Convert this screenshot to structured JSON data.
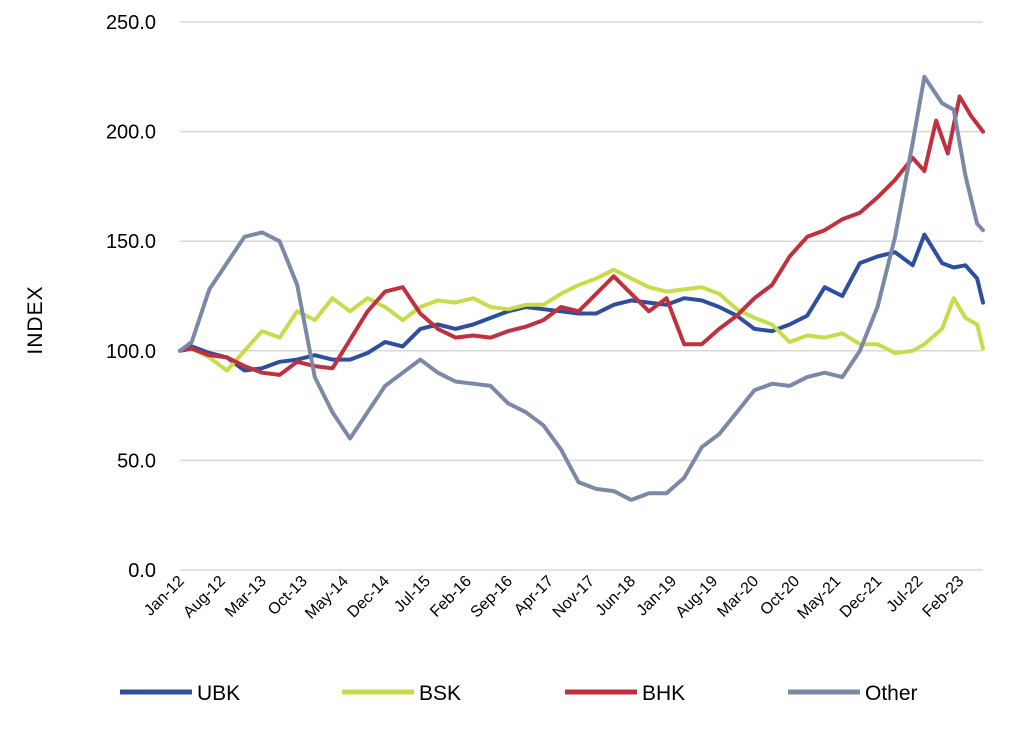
{
  "chart_data": {
    "type": "line",
    "title": "",
    "xlabel": "",
    "ylabel": "INDEX",
    "ylim": [
      0,
      250
    ],
    "yticks": [
      "0.0",
      "50.0",
      "100.0",
      "150.0",
      "200.0",
      "250.0"
    ],
    "x_range": [
      "2012-01",
      "2023-06"
    ],
    "xtick_labels": [
      {
        "label": "Jan-12",
        "date": "2012-01"
      },
      {
        "label": "Aug-12",
        "date": "2012-08"
      },
      {
        "label": "Mar-13",
        "date": "2013-03"
      },
      {
        "label": "Oct-13",
        "date": "2013-10"
      },
      {
        "label": "May-14",
        "date": "2014-05"
      },
      {
        "label": "Dec-14",
        "date": "2014-12"
      },
      {
        "label": "Jul-15",
        "date": "2015-07"
      },
      {
        "label": "Feb-16",
        "date": "2016-02"
      },
      {
        "label": "Sep-16",
        "date": "2016-09"
      },
      {
        "label": "Apr-17",
        "date": "2017-04"
      },
      {
        "label": "Nov-17",
        "date": "2017-11"
      },
      {
        "label": "Jun-18",
        "date": "2018-06"
      },
      {
        "label": "Jan-19",
        "date": "2019-01"
      },
      {
        "label": "Aug-19",
        "date": "2019-08"
      },
      {
        "label": "Mar-20",
        "date": "2020-03"
      },
      {
        "label": "Oct-20",
        "date": "2020-10"
      },
      {
        "label": "May-21",
        "date": "2021-05"
      },
      {
        "label": "Dec-21",
        "date": "2021-12"
      },
      {
        "label": "Jul-22",
        "date": "2022-07"
      },
      {
        "label": "Feb-23",
        "date": "2023-02"
      }
    ],
    "grid": true,
    "legend_position": "bottom",
    "series": [
      {
        "name": "UBK",
        "color": "#2e4f9e",
        "points": [
          [
            "2012-01",
            100
          ],
          [
            "2012-03",
            102
          ],
          [
            "2012-06",
            99
          ],
          [
            "2012-09",
            97
          ],
          [
            "2012-12",
            91
          ],
          [
            "2013-03",
            92
          ],
          [
            "2013-06",
            95
          ],
          [
            "2013-09",
            96
          ],
          [
            "2013-12",
            98
          ],
          [
            "2014-03",
            96
          ],
          [
            "2014-06",
            96
          ],
          [
            "2014-09",
            99
          ],
          [
            "2014-12",
            104
          ],
          [
            "2015-03",
            102
          ],
          [
            "2015-06",
            110
          ],
          [
            "2015-09",
            112
          ],
          [
            "2015-12",
            110
          ],
          [
            "2016-03",
            112
          ],
          [
            "2016-06",
            115
          ],
          [
            "2016-09",
            118
          ],
          [
            "2016-12",
            120
          ],
          [
            "2017-03",
            119
          ],
          [
            "2017-06",
            118
          ],
          [
            "2017-09",
            117
          ],
          [
            "2017-12",
            117
          ],
          [
            "2018-03",
            121
          ],
          [
            "2018-06",
            123
          ],
          [
            "2018-09",
            122
          ],
          [
            "2018-12",
            121
          ],
          [
            "2019-03",
            124
          ],
          [
            "2019-06",
            123
          ],
          [
            "2019-09",
            120
          ],
          [
            "2019-12",
            116
          ],
          [
            "2020-03",
            110
          ],
          [
            "2020-06",
            109
          ],
          [
            "2020-09",
            112
          ],
          [
            "2020-12",
            116
          ],
          [
            "2021-03",
            129
          ],
          [
            "2021-06",
            125
          ],
          [
            "2021-09",
            140
          ],
          [
            "2021-12",
            143
          ],
          [
            "2022-03",
            145
          ],
          [
            "2022-06",
            139
          ],
          [
            "2022-08",
            153
          ],
          [
            "2022-11",
            140
          ],
          [
            "2023-01",
            138
          ],
          [
            "2023-03",
            139
          ],
          [
            "2023-05",
            133
          ],
          [
            "2023-06",
            122
          ]
        ]
      },
      {
        "name": "BSK",
        "color": "#c8dc4b",
        "points": [
          [
            "2012-01",
            100
          ],
          [
            "2012-03",
            101
          ],
          [
            "2012-06",
            97
          ],
          [
            "2012-09",
            91
          ],
          [
            "2012-12",
            100
          ],
          [
            "2013-03",
            109
          ],
          [
            "2013-06",
            106
          ],
          [
            "2013-09",
            118
          ],
          [
            "2013-12",
            114
          ],
          [
            "2014-03",
            124
          ],
          [
            "2014-06",
            118
          ],
          [
            "2014-09",
            124
          ],
          [
            "2014-12",
            120
          ],
          [
            "2015-03",
            114
          ],
          [
            "2015-06",
            120
          ],
          [
            "2015-09",
            123
          ],
          [
            "2015-12",
            122
          ],
          [
            "2016-03",
            124
          ],
          [
            "2016-06",
            120
          ],
          [
            "2016-09",
            119
          ],
          [
            "2016-12",
            121
          ],
          [
            "2017-03",
            121
          ],
          [
            "2017-06",
            126
          ],
          [
            "2017-09",
            130
          ],
          [
            "2017-12",
            133
          ],
          [
            "2018-03",
            137
          ],
          [
            "2018-06",
            133
          ],
          [
            "2018-09",
            129
          ],
          [
            "2018-12",
            127
          ],
          [
            "2019-03",
            128
          ],
          [
            "2019-06",
            129
          ],
          [
            "2019-09",
            126
          ],
          [
            "2019-12",
            119
          ],
          [
            "2020-03",
            115
          ],
          [
            "2020-06",
            112
          ],
          [
            "2020-09",
            104
          ],
          [
            "2020-12",
            107
          ],
          [
            "2021-03",
            106
          ],
          [
            "2021-06",
            108
          ],
          [
            "2021-09",
            103
          ],
          [
            "2021-12",
            103
          ],
          [
            "2022-03",
            99
          ],
          [
            "2022-06",
            100
          ],
          [
            "2022-08",
            103
          ],
          [
            "2022-11",
            110
          ],
          [
            "2023-01",
            124
          ],
          [
            "2023-03",
            115
          ],
          [
            "2023-05",
            112
          ],
          [
            "2023-06",
            101
          ]
        ]
      },
      {
        "name": "BHK",
        "color": "#c0303f",
        "points": [
          [
            "2012-01",
            100
          ],
          [
            "2012-03",
            101
          ],
          [
            "2012-06",
            98
          ],
          [
            "2012-09",
            97
          ],
          [
            "2012-12",
            93
          ],
          [
            "2013-03",
            90
          ],
          [
            "2013-06",
            89
          ],
          [
            "2013-09",
            95
          ],
          [
            "2013-12",
            93
          ],
          [
            "2014-03",
            92
          ],
          [
            "2014-06",
            105
          ],
          [
            "2014-09",
            118
          ],
          [
            "2014-12",
            127
          ],
          [
            "2015-03",
            129
          ],
          [
            "2015-06",
            117
          ],
          [
            "2015-09",
            110
          ],
          [
            "2015-12",
            106
          ],
          [
            "2016-03",
            107
          ],
          [
            "2016-06",
            106
          ],
          [
            "2016-09",
            109
          ],
          [
            "2016-12",
            111
          ],
          [
            "2017-03",
            114
          ],
          [
            "2017-06",
            120
          ],
          [
            "2017-09",
            118
          ],
          [
            "2017-12",
            126
          ],
          [
            "2018-03",
            134
          ],
          [
            "2018-06",
            126
          ],
          [
            "2018-09",
            118
          ],
          [
            "2018-12",
            124
          ],
          [
            "2019-03",
            103
          ],
          [
            "2019-06",
            103
          ],
          [
            "2019-09",
            110
          ],
          [
            "2019-12",
            116
          ],
          [
            "2020-03",
            124
          ],
          [
            "2020-06",
            130
          ],
          [
            "2020-09",
            143
          ],
          [
            "2020-12",
            152
          ],
          [
            "2021-03",
            155
          ],
          [
            "2021-06",
            160
          ],
          [
            "2021-09",
            163
          ],
          [
            "2021-12",
            170
          ],
          [
            "2022-03",
            178
          ],
          [
            "2022-06",
            188
          ],
          [
            "2022-08",
            182
          ],
          [
            "2022-10",
            205
          ],
          [
            "2022-12",
            190
          ],
          [
            "2023-02",
            216
          ],
          [
            "2023-04",
            207
          ],
          [
            "2023-06",
            200
          ]
        ]
      },
      {
        "name": "Other",
        "color": "#7b88a6",
        "points": [
          [
            "2012-01",
            100
          ],
          [
            "2012-03",
            104
          ],
          [
            "2012-06",
            128
          ],
          [
            "2012-09",
            140
          ],
          [
            "2012-12",
            152
          ],
          [
            "2013-03",
            154
          ],
          [
            "2013-06",
            150
          ],
          [
            "2013-09",
            130
          ],
          [
            "2013-12",
            88
          ],
          [
            "2014-03",
            72
          ],
          [
            "2014-06",
            60
          ],
          [
            "2014-09",
            72
          ],
          [
            "2014-12",
            84
          ],
          [
            "2015-03",
            90
          ],
          [
            "2015-06",
            96
          ],
          [
            "2015-09",
            90
          ],
          [
            "2015-12",
            86
          ],
          [
            "2016-03",
            85
          ],
          [
            "2016-06",
            84
          ],
          [
            "2016-09",
            76
          ],
          [
            "2016-12",
            72
          ],
          [
            "2017-03",
            66
          ],
          [
            "2017-06",
            55
          ],
          [
            "2017-09",
            40
          ],
          [
            "2017-12",
            37
          ],
          [
            "2018-03",
            36
          ],
          [
            "2018-06",
            32
          ],
          [
            "2018-09",
            35
          ],
          [
            "2018-12",
            35
          ],
          [
            "2019-03",
            42
          ],
          [
            "2019-06",
            56
          ],
          [
            "2019-09",
            62
          ],
          [
            "2019-12",
            72
          ],
          [
            "2020-03",
            82
          ],
          [
            "2020-06",
            85
          ],
          [
            "2020-09",
            84
          ],
          [
            "2020-12",
            88
          ],
          [
            "2021-03",
            90
          ],
          [
            "2021-06",
            88
          ],
          [
            "2021-09",
            100
          ],
          [
            "2021-12",
            120
          ],
          [
            "2022-03",
            152
          ],
          [
            "2022-06",
            195
          ],
          [
            "2022-08",
            225
          ],
          [
            "2022-11",
            213
          ],
          [
            "2023-01",
            210
          ],
          [
            "2023-03",
            180
          ],
          [
            "2023-05",
            158
          ],
          [
            "2023-06",
            155
          ]
        ]
      }
    ]
  }
}
